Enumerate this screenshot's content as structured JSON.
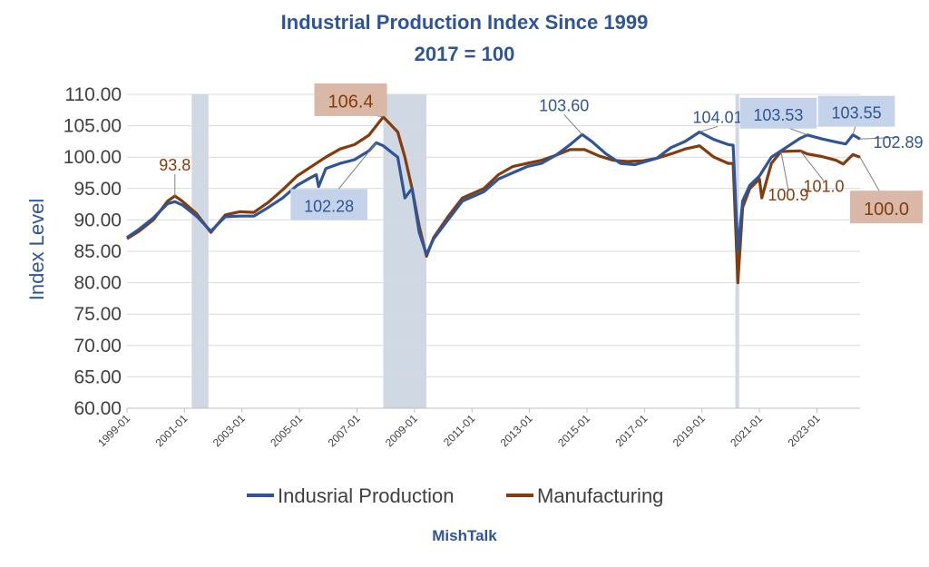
{
  "chart_data": {
    "type": "line",
    "title": "Industrial Production Index Since 1999",
    "subtitle": "2017 = 100",
    "ylabel": "Index Level",
    "xlabel": "",
    "ylim": [
      60,
      110
    ],
    "y_ticks": [
      "60.00",
      "65.00",
      "70.00",
      "75.00",
      "80.00",
      "85.00",
      "90.00",
      "95.00",
      "100.00",
      "105.00",
      "110.00"
    ],
    "x_ticks": [
      "1999-01",
      "2001-01",
      "2003-01",
      "2005-01",
      "2007-01",
      "2009-01",
      "2011-01",
      "2013-01",
      "2015-01",
      "2017-01",
      "2019-01",
      "2021-01",
      "2023-01"
    ],
    "x_range": [
      "1999-01",
      "2024-07"
    ],
    "grid": true,
    "legend": "bottom",
    "recession_bands": [
      [
        "2001-04",
        "2001-11"
      ],
      [
        "2007-12",
        "2009-06"
      ],
      [
        "2020-03",
        "2020-04"
      ]
    ],
    "series": [
      {
        "name": "Indusrial Production",
        "color": "#2F5597",
        "points": [
          [
            "1999-01",
            87.2
          ],
          [
            "1999-06",
            88.5
          ],
          [
            "1999-12",
            90.3
          ],
          [
            "2000-06",
            92.6
          ],
          [
            "2000-09",
            92.9
          ],
          [
            "2000-12",
            92.4
          ],
          [
            "2001-06",
            90.6
          ],
          [
            "2001-12",
            88.2
          ],
          [
            "2002-06",
            90.5
          ],
          [
            "2002-12",
            90.6
          ],
          [
            "2003-06",
            90.6
          ],
          [
            "2003-12",
            92.0
          ],
          [
            "2004-06",
            93.5
          ],
          [
            "2004-12",
            95.5
          ],
          [
            "2005-06",
            96.8
          ],
          [
            "2005-08",
            97.2
          ],
          [
            "2005-09",
            95.3
          ],
          [
            "2005-12",
            98.2
          ],
          [
            "2006-06",
            99.0
          ],
          [
            "2006-12",
            99.6
          ],
          [
            "2007-06",
            101.0
          ],
          [
            "2007-09",
            102.28
          ],
          [
            "2007-12",
            101.8
          ],
          [
            "2008-06",
            100.0
          ],
          [
            "2008-09",
            93.5
          ],
          [
            "2008-12",
            95.0
          ],
          [
            "2009-03",
            88.0
          ],
          [
            "2009-06",
            84.5
          ],
          [
            "2009-09",
            87.0
          ],
          [
            "2010-03",
            90.0
          ],
          [
            "2010-09",
            93.0
          ],
          [
            "2011-06",
            94.5
          ],
          [
            "2011-12",
            96.5
          ],
          [
            "2012-06",
            97.5
          ],
          [
            "2012-12",
            98.5
          ],
          [
            "2013-06",
            99.0
          ],
          [
            "2013-12",
            100.3
          ],
          [
            "2014-06",
            102.0
          ],
          [
            "2014-11",
            103.6
          ],
          [
            "2015-03",
            102.5
          ],
          [
            "2015-09",
            100.5
          ],
          [
            "2016-03",
            99.0
          ],
          [
            "2016-09",
            98.8
          ],
          [
            "2017-06",
            99.8
          ],
          [
            "2017-12",
            101.5
          ],
          [
            "2018-06",
            102.5
          ],
          [
            "2018-12",
            104.01
          ],
          [
            "2019-06",
            102.8
          ],
          [
            "2019-12",
            102.0
          ],
          [
            "2020-02",
            101.9
          ],
          [
            "2020-04",
            85.0
          ],
          [
            "2020-06",
            93.0
          ],
          [
            "2020-09",
            95.5
          ],
          [
            "2021-01",
            97.0
          ],
          [
            "2021-06",
            100.0
          ],
          [
            "2021-12",
            101.5
          ],
          [
            "2022-06",
            103.0
          ],
          [
            "2022-09",
            103.53
          ],
          [
            "2023-03",
            102.9
          ],
          [
            "2023-09",
            102.4
          ],
          [
            "2024-01",
            102.1
          ],
          [
            "2024-04",
            103.55
          ],
          [
            "2024-07",
            102.89
          ]
        ]
      },
      {
        "name": "Manufacturing",
        "color": "#843C0C",
        "points": [
          [
            "1999-01",
            87.0
          ],
          [
            "1999-06",
            88.2
          ],
          [
            "1999-12",
            90.0
          ],
          [
            "2000-06",
            93.0
          ],
          [
            "2000-09",
            93.8
          ],
          [
            "2000-12",
            93.0
          ],
          [
            "2001-06",
            91.0
          ],
          [
            "2001-12",
            88.0
          ],
          [
            "2002-06",
            90.8
          ],
          [
            "2002-12",
            91.3
          ],
          [
            "2003-06",
            91.2
          ],
          [
            "2003-12",
            92.8
          ],
          [
            "2004-06",
            94.8
          ],
          [
            "2004-12",
            97.0
          ],
          [
            "2005-06",
            98.5
          ],
          [
            "2005-12",
            100.0
          ],
          [
            "2006-06",
            101.3
          ],
          [
            "2006-12",
            102.0
          ],
          [
            "2007-06",
            103.5
          ],
          [
            "2007-12",
            106.4
          ],
          [
            "2008-06",
            104.0
          ],
          [
            "2008-09",
            100.0
          ],
          [
            "2008-12",
            95.0
          ],
          [
            "2009-03",
            89.0
          ],
          [
            "2009-06",
            84.2
          ],
          [
            "2009-09",
            87.2
          ],
          [
            "2010-03",
            90.5
          ],
          [
            "2010-09",
            93.5
          ],
          [
            "2011-06",
            95.0
          ],
          [
            "2011-12",
            97.2
          ],
          [
            "2012-06",
            98.5
          ],
          [
            "2012-12",
            99.0
          ],
          [
            "2013-06",
            99.5
          ],
          [
            "2013-12",
            100.3
          ],
          [
            "2014-06",
            101.2
          ],
          [
            "2014-12",
            101.2
          ],
          [
            "2015-06",
            100.2
          ],
          [
            "2015-12",
            99.5
          ],
          [
            "2016-06",
            99.3
          ],
          [
            "2016-12",
            99.4
          ],
          [
            "2017-06",
            99.8
          ],
          [
            "2017-12",
            100.5
          ],
          [
            "2018-06",
            101.3
          ],
          [
            "2018-12",
            101.8
          ],
          [
            "2019-06",
            100.0
          ],
          [
            "2019-12",
            99.0
          ],
          [
            "2020-02",
            99.0
          ],
          [
            "2020-04",
            80.0
          ],
          [
            "2020-06",
            92.0
          ],
          [
            "2020-09",
            95.0
          ],
          [
            "2021-01",
            96.5
          ],
          [
            "2021-02",
            93.5
          ],
          [
            "2021-06",
            99.0
          ],
          [
            "2021-10",
            100.9
          ],
          [
            "2022-06",
            101.0
          ],
          [
            "2022-09",
            100.5
          ],
          [
            "2023-03",
            100.1
          ],
          [
            "2023-09",
            99.5
          ],
          [
            "2023-12",
            98.9
          ],
          [
            "2024-04",
            100.4
          ],
          [
            "2024-07",
            100.0
          ]
        ]
      }
    ],
    "annotations": [
      {
        "text": "93.8",
        "series": 1,
        "date": "2000-09",
        "color": "#843C0C",
        "boxed": false
      },
      {
        "text": "106.4",
        "series": 1,
        "date": "2007-12",
        "color": "#843C0C",
        "boxed": true,
        "box_color": "#D9B8A8"
      },
      {
        "text": "102.28",
        "series": 0,
        "date": "2007-09",
        "color": "#2F5597",
        "boxed": true,
        "box_color": "#C5D3EA"
      },
      {
        "text": "103.60",
        "series": 0,
        "date": "2014-11",
        "color": "#2F5597",
        "boxed": false
      },
      {
        "text": "104.01",
        "series": 0,
        "date": "2018-12",
        "color": "#2F5597",
        "boxed": false
      },
      {
        "text": "103.53",
        "series": 0,
        "date": "2022-09",
        "color": "#2F5597",
        "boxed": true,
        "box_color": "#C5D3EA"
      },
      {
        "text": "103.55",
        "series": 0,
        "date": "2024-04",
        "color": "#2F5597",
        "boxed": true,
        "box_color": "#C5D3EA"
      },
      {
        "text": "102.89",
        "series": 0,
        "date": "2024-07",
        "color": "#2F5597",
        "boxed": false
      },
      {
        "text": "100.9",
        "series": 1,
        "date": "2021-10",
        "color": "#843C0C",
        "boxed": false
      },
      {
        "text": "101.0",
        "series": 1,
        "date": "2022-06",
        "color": "#843C0C",
        "boxed": false
      },
      {
        "text": "100.0",
        "series": 1,
        "date": "2024-07",
        "color": "#843C0C",
        "boxed": true,
        "box_color": "#D9B8A8"
      }
    ]
  },
  "footer": {
    "brand": "MishTalk"
  },
  "colors": {
    "title": "#2F5597",
    "axis_text": "#404040",
    "grid": "#D9D9D9",
    "recession": "#D0D8E4",
    "brand": "#2F5597"
  }
}
